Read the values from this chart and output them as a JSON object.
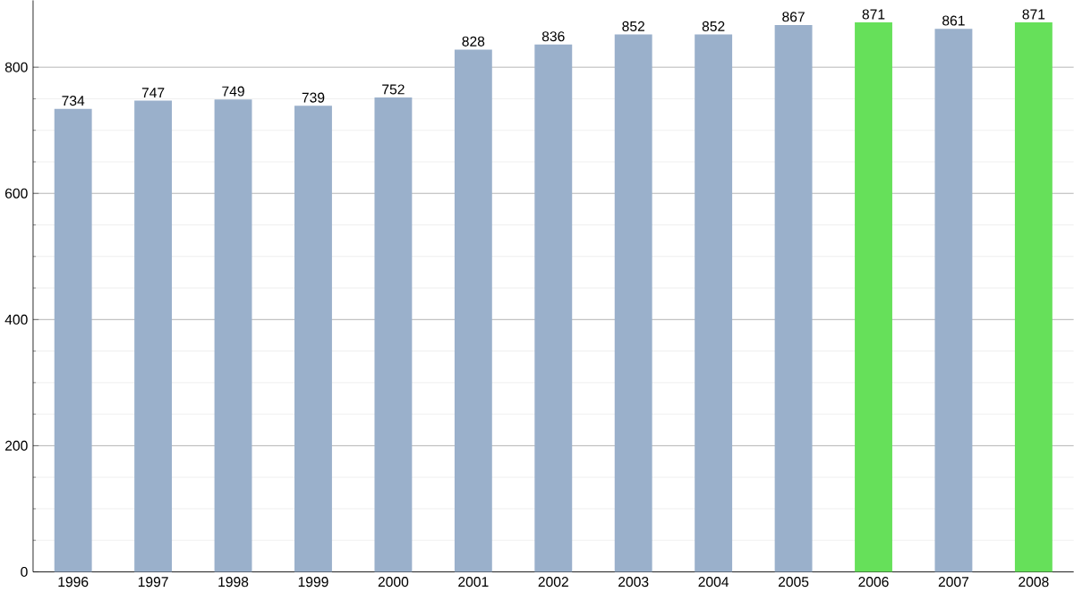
{
  "chart_data": {
    "type": "bar",
    "categories": [
      "1996",
      "1997",
      "1998",
      "1999",
      "2000",
      "2001",
      "2002",
      "2003",
      "2004",
      "2005",
      "2006",
      "2007",
      "2008"
    ],
    "values": [
      734,
      747,
      749,
      739,
      752,
      828,
      836,
      852,
      852,
      867,
      871,
      861,
      871
    ],
    "colors": [
      "#9ab0cb",
      "#9ab0cb",
      "#9ab0cb",
      "#9ab0cb",
      "#9ab0cb",
      "#9ab0cb",
      "#9ab0cb",
      "#9ab0cb",
      "#9ab0cb",
      "#9ab0cb",
      "#66e05a",
      "#9ab0cb",
      "#66e05a"
    ],
    "ylim": [
      0,
      906
    ],
    "yticks": [
      0,
      200,
      400,
      600,
      800
    ],
    "grid": "y",
    "data_labels": true
  }
}
